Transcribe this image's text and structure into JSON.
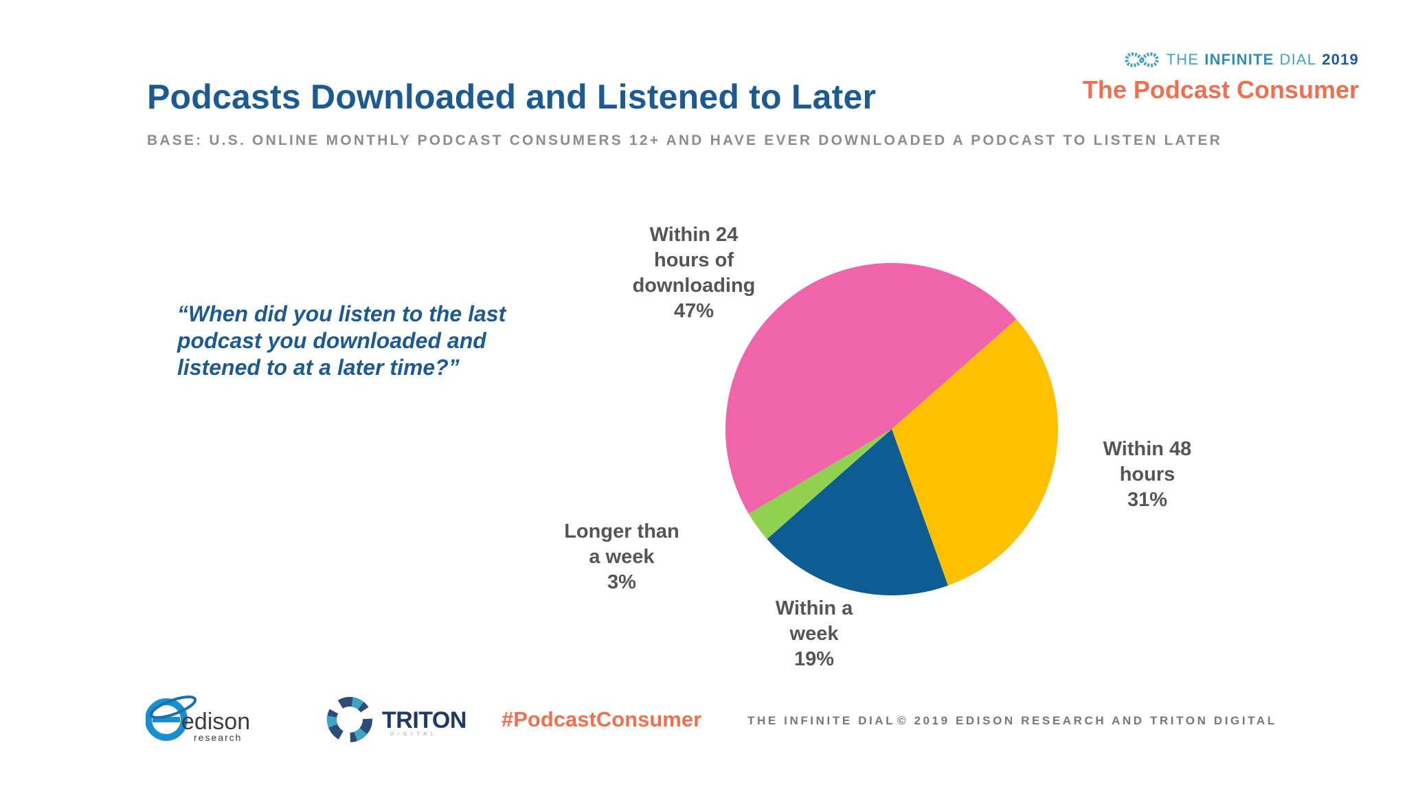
{
  "header": {
    "title": "Podcasts Downloaded and Listened to Later",
    "base": "BASE: U.S. ONLINE MONTHLY PODCAST CONSUMERS 12+ AND HAVE EVER DOWNLOADED A PODCAST TO LISTEN LATER"
  },
  "brand": {
    "line1_prefix": "THE",
    "line1_bold": "INFINITE",
    "line1_suffix": "DIAL",
    "line1_year": "2019",
    "line2": "The Podcast Consumer"
  },
  "question": "“When did you listen to the last podcast you downloaded and listened to at a later time?”",
  "chart_data": {
    "type": "pie",
    "slices": [
      {
        "label_lines": [
          "Within 24",
          "hours of",
          "downloading",
          "47%"
        ],
        "value": 47,
        "color": "#f064aa"
      },
      {
        "label_lines": [
          "Within 48",
          "hours",
          "31%"
        ],
        "value": 31,
        "color": "#ffc000"
      },
      {
        "label_lines": [
          "Within a",
          "week",
          "19%"
        ],
        "value": 19,
        "color": "#0d5c94"
      },
      {
        "label_lines": [
          "Longer than",
          "a week",
          "3%"
        ],
        "value": 3,
        "color": "#92d050"
      }
    ]
  },
  "footer": {
    "edison_word": "edison",
    "edison_sub": "research",
    "triton_word": "TRITON",
    "triton_sub": "DIGITAL",
    "hashtag": "#PodcastConsumer",
    "dial": "THE INFINITE DIAL",
    "copyright": "© 2019 EDISON RESEARCH AND TRITON DIGITAL"
  }
}
